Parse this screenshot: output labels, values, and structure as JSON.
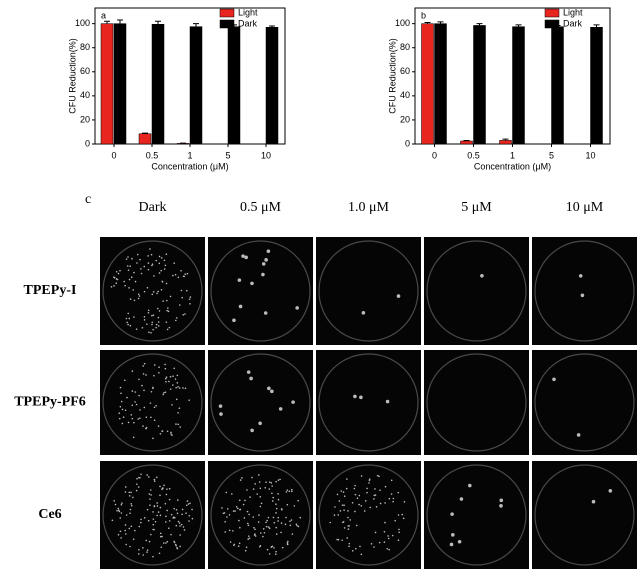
{
  "chart_data": [
    {
      "type": "bar",
      "label": "a",
      "x_label": "Concentration (μM)",
      "y_label": "CFU Reduction(%)",
      "categories": [
        "0",
        "0.5",
        "1",
        "5",
        "10"
      ],
      "series": [
        {
          "name": "Light",
          "color": "#e8251f",
          "values": [
            100,
            8.5,
            0.5,
            null,
            null
          ],
          "errors": [
            2,
            0.5,
            0.2,
            null,
            null
          ]
        },
        {
          "name": "Dark",
          "color": "#000000",
          "values": [
            100,
            99.5,
            97.5,
            97.5,
            97
          ],
          "errors": [
            3,
            2.5,
            2.5,
            1.5,
            1
          ]
        }
      ],
      "ylim": [
        0,
        113
      ],
      "yticks": [
        0,
        20,
        40,
        60,
        80,
        100
      ],
      "legend": "upper right"
    },
    {
      "type": "bar",
      "label": "b",
      "x_label": "Concentration (μM)",
      "y_label": "CFU Reduction(%)",
      "categories": [
        "0",
        "0.5",
        "1",
        "5",
        "10"
      ],
      "series": [
        {
          "name": "Light",
          "color": "#e8251f",
          "values": [
            100,
            2.5,
            3,
            null,
            null
          ],
          "errors": [
            1,
            0.4,
            1,
            null,
            null
          ]
        },
        {
          "name": "Dark",
          "color": "#000000",
          "values": [
            100,
            98.5,
            97.5,
            97.5,
            97
          ],
          "errors": [
            1.5,
            1.5,
            1.5,
            1,
            2
          ]
        }
      ],
      "ylim": [
        0,
        113
      ],
      "yticks": [
        0,
        20,
        40,
        60,
        80,
        100
      ],
      "legend": "upper right"
    }
  ],
  "panel_c": {
    "label": "c",
    "columns": [
      "Dark",
      "0.5 μM",
      "1.0 μM",
      "5 μM",
      "10 μM"
    ],
    "rows": [
      "TPEPy-I",
      "TPEPy-PF6",
      "Ce6"
    ]
  }
}
